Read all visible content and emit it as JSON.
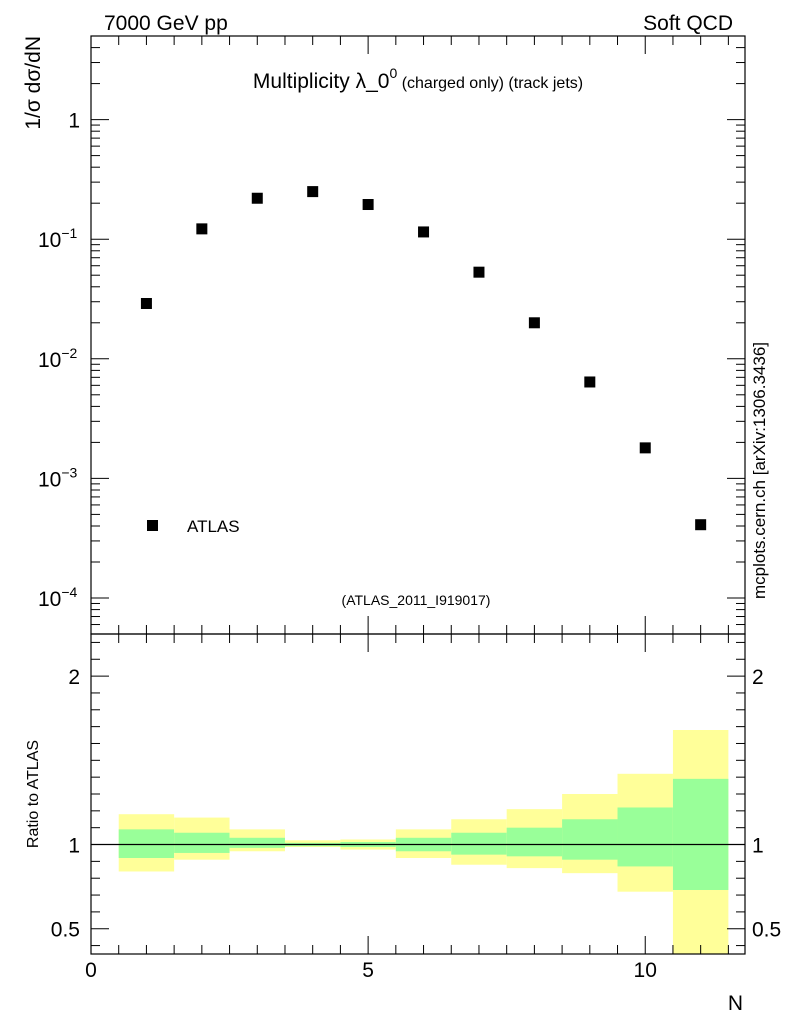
{
  "header": {
    "left": "7000 GeV pp",
    "right": "Soft QCD"
  },
  "side_note": "mcplots.cern.ch [arXiv:1306.3436]",
  "colors": {
    "inner_band": "#99ff99",
    "outer_band": "#ffff99",
    "marker": "#000000",
    "watermark": "#999999"
  },
  "chart_data": [
    {
      "type": "scatter",
      "title_main": "Multiplicity λ_0",
      "title_sup": "0",
      "title_suffix": " (charged only) (track jets)",
      "ylabel": "1/σ dσ/dN",
      "yscale": "log",
      "ylim": [
        5e-05,
        5
      ],
      "xlim": [
        0,
        11.8
      ],
      "y_ticks": [
        {
          "value": 1,
          "label": "1"
        },
        {
          "value": 0.1,
          "base": "10",
          "exp": "−1"
        },
        {
          "value": 0.01,
          "base": "10",
          "exp": "−2"
        },
        {
          "value": 0.001,
          "base": "10",
          "exp": "−3"
        },
        {
          "value": 0.0001,
          "base": "10",
          "exp": "−4"
        }
      ],
      "legend": {
        "label": "ATLAS",
        "placement": "bottom-left"
      },
      "watermark": "(ATLAS_2011_I919017)",
      "series": [
        {
          "name": "ATLAS",
          "x": [
            1,
            2,
            3,
            4,
            5,
            6,
            7,
            8,
            9,
            10,
            11
          ],
          "y": [
            0.029,
            0.122,
            0.22,
            0.25,
            0.195,
            0.115,
            0.053,
            0.02,
            0.0064,
            0.0018,
            0.00041
          ]
        }
      ]
    },
    {
      "type": "area",
      "ylabel": "Ratio to ATLAS",
      "xlabel": "N",
      "xlim": [
        0,
        11.8
      ],
      "ylim": [
        0.35,
        2.25
      ],
      "x_ticks": [
        {
          "value": 0,
          "label": "0"
        },
        {
          "value": 5,
          "label": "5"
        },
        {
          "value": 10,
          "label": "10"
        }
      ],
      "y_ticks": [
        {
          "value": 0.5,
          "label": "0.5"
        },
        {
          "value": 1,
          "label": "1"
        },
        {
          "value": 2,
          "label": "2"
        }
      ],
      "reference_line": 1,
      "bins": [
        {
          "x0": 0.5,
          "x1": 1.5,
          "inner": [
            0.92,
            1.09
          ],
          "outer": [
            0.84,
            1.18
          ]
        },
        {
          "x0": 1.5,
          "x1": 2.5,
          "inner": [
            0.95,
            1.07
          ],
          "outer": [
            0.91,
            1.16
          ]
        },
        {
          "x0": 2.5,
          "x1": 3.5,
          "inner": [
            0.98,
            1.04
          ],
          "outer": [
            0.96,
            1.09
          ]
        },
        {
          "x0": 3.5,
          "x1": 4.5,
          "inner": [
            0.99,
            1.01
          ],
          "outer": [
            0.985,
            1.025
          ]
        },
        {
          "x0": 4.5,
          "x1": 5.5,
          "inner": [
            0.985,
            1.015
          ],
          "outer": [
            0.97,
            1.03
          ]
        },
        {
          "x0": 5.5,
          "x1": 6.5,
          "inner": [
            0.96,
            1.04
          ],
          "outer": [
            0.92,
            1.09
          ]
        },
        {
          "x0": 6.5,
          "x1": 7.5,
          "inner": [
            0.94,
            1.07
          ],
          "outer": [
            0.88,
            1.15
          ]
        },
        {
          "x0": 7.5,
          "x1": 8.5,
          "inner": [
            0.93,
            1.1
          ],
          "outer": [
            0.86,
            1.21
          ]
        },
        {
          "x0": 8.5,
          "x1": 9.5,
          "inner": [
            0.91,
            1.15
          ],
          "outer": [
            0.83,
            1.3
          ]
        },
        {
          "x0": 9.5,
          "x1": 10.5,
          "inner": [
            0.87,
            1.22
          ],
          "outer": [
            0.72,
            1.42
          ]
        },
        {
          "x0": 10.5,
          "x1": 11.5,
          "inner": [
            0.73,
            1.39
          ],
          "outer": [
            0.35,
            1.68
          ]
        }
      ]
    }
  ]
}
